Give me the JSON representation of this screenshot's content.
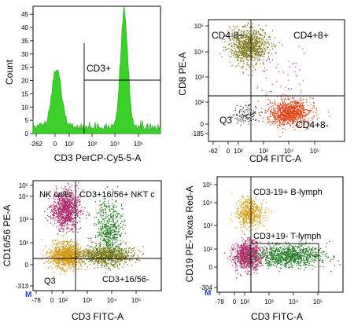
{
  "chart_data": [
    {
      "type": "histogram",
      "xlabel": "CD3 PerCP-Cy5-5-A",
      "ylabel": "Count",
      "x_ticks": [
        "-262",
        "0",
        "10²",
        "10³",
        "10⁴",
        "10⁵"
      ],
      "y_ticks": [
        "0",
        "5",
        "10",
        "15",
        "20",
        "25",
        "30",
        "35",
        "40",
        "45"
      ],
      "fill_color": "#39d12a",
      "peaks": [
        {
          "label": "CD3- population",
          "position_decade": 0.1,
          "count": 23
        },
        {
          "label": "CD3+ population",
          "position_decade": 4.15,
          "count": 44
        }
      ],
      "gates": [
        {
          "label": "CD3+"
        }
      ]
    },
    {
      "type": "scatter",
      "xlabel": "CD4 FITC-A",
      "ylabel": "CD8 PE-A",
      "x_ticks": [
        "-62",
        "0",
        "10²",
        "10³",
        "10⁴",
        "10⁵"
      ],
      "y_ticks": [
        "-185",
        "0",
        "10²",
        "10³",
        "10⁴",
        "10⁵"
      ],
      "gates": [
        {
          "label": "CD4-8+"
        },
        {
          "label": "CD4+8+"
        },
        {
          "label": "Q3"
        },
        {
          "label": "CD4+8-"
        }
      ],
      "populations": [
        {
          "name": "CD4-8+",
          "color": "#807a1f",
          "x_decade": 1.2,
          "y_decade": 4.0,
          "density": "high"
        },
        {
          "name": "CD4+8-",
          "color": "#e04414",
          "x_decade": 3.5,
          "y_decade": 0.6,
          "density": "high"
        },
        {
          "name": "Q3",
          "color": "#444444",
          "x_decade": 1.0,
          "y_decade": 0.5,
          "density": "low"
        },
        {
          "name": "CD4+8+",
          "color": "#c040c0",
          "x_decade": 3.0,
          "y_decade": 2.5,
          "density": "sparse"
        }
      ]
    },
    {
      "type": "scatter",
      "xlabel": "CD3 FITC-A",
      "ylabel": "CD16/56 PE-A",
      "x_ticks": [
        "-78",
        "0",
        "10²",
        "10³",
        "10⁴",
        "10⁵"
      ],
      "y_ticks": [
        "-313",
        "0",
        "10²",
        "10³",
        "10⁴",
        "10⁵"
      ],
      "corner_mark": "M",
      "gates": [
        {
          "label": "NK cells"
        },
        {
          "label": "CD3+16/56+ NKT c"
        },
        {
          "label": "Q3"
        },
        {
          "label": "CD3+16/56-"
        }
      ],
      "populations": [
        {
          "name": "NK cells",
          "color": "#b02c6e",
          "x_decade": 0.8,
          "y_decade": 3.5,
          "density": "high"
        },
        {
          "name": "Q3",
          "color": "#d49a12",
          "x_decade": 0.8,
          "y_decade": 0.6,
          "density": "high"
        },
        {
          "name": "CD3+16/56-",
          "color": "#837a1c",
          "x_decade": 3.2,
          "y_decade": 0.6,
          "density": "high"
        },
        {
          "name": "CD3+16/56+ NKT c",
          "color": "#1c7d1c",
          "x_decade": 3.4,
          "y_decade": 2.3,
          "density": "medium"
        }
      ]
    },
    {
      "type": "scatter",
      "xlabel": "CD3 FITC-A",
      "ylabel": "CD19 PE-Texas Red-A",
      "x_ticks": [
        "-78",
        "0",
        "10²",
        "10³",
        "10⁴",
        "10⁵"
      ],
      "y_ticks": [
        "-304",
        "0",
        "10²",
        "10³",
        "10⁴",
        "10⁵"
      ],
      "corner_mark": "M",
      "gates": [
        {
          "label": "CD3-19+ B-lymph"
        },
        {
          "label": "CD3+19- T-lymph"
        }
      ],
      "populations": [
        {
          "name": "CD3-19+ B-lymph",
          "color": "#d9a21c",
          "x_decade": 0.9,
          "y_decade": 3.3,
          "density": "medium"
        },
        {
          "name": "CD3-19-",
          "color": "#b4306e",
          "x_decade": 0.8,
          "y_decade": 0.7,
          "density": "high"
        },
        {
          "name": "CD3+19- T-lymph",
          "color": "#207a20",
          "x_decade": 3.3,
          "y_decade": 0.7,
          "density": "high"
        }
      ]
    }
  ]
}
